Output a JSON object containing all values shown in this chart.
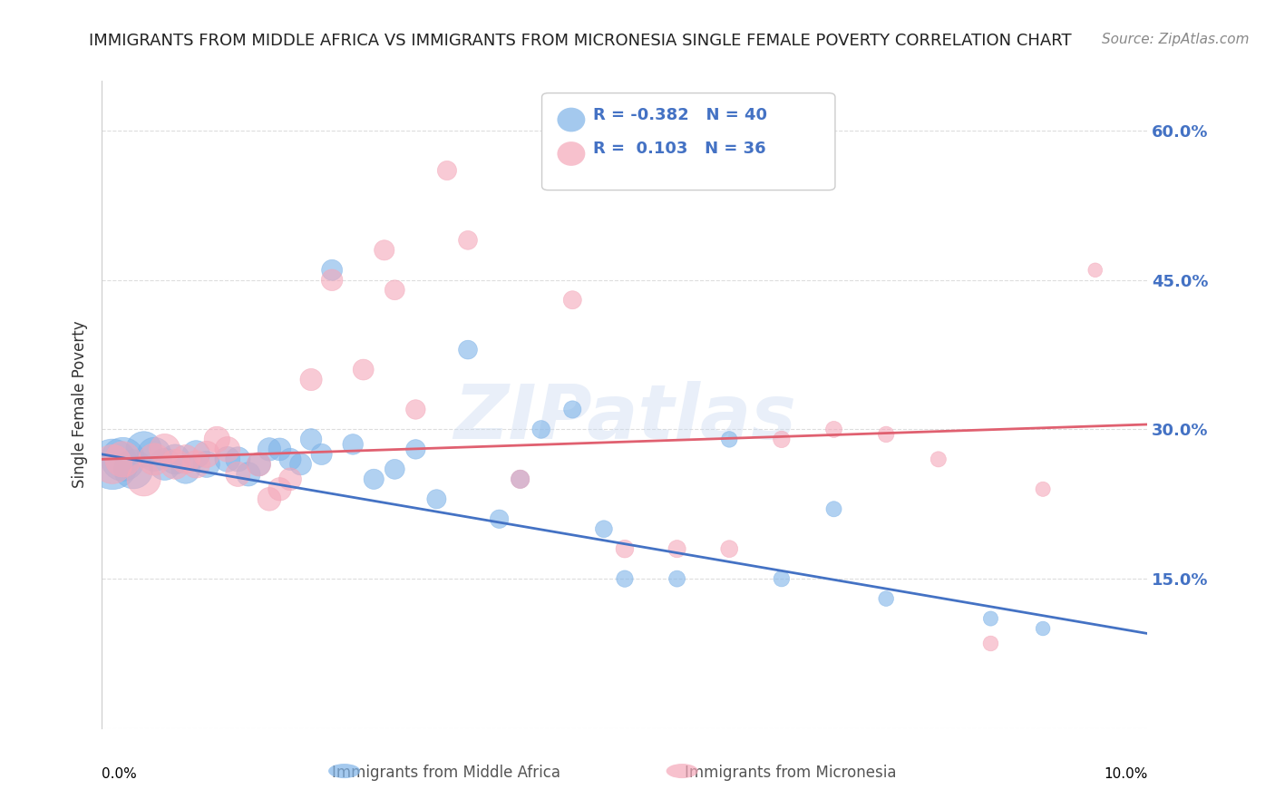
{
  "title": "IMMIGRANTS FROM MIDDLE AFRICA VS IMMIGRANTS FROM MICRONESIA SINGLE FEMALE POVERTY CORRELATION CHART",
  "source": "Source: ZipAtlas.com",
  "ylabel": "Single Female Poverty",
  "legend_blue_R": "-0.382",
  "legend_blue_N": "40",
  "legend_pink_R": "0.103",
  "legend_pink_N": "36",
  "yticks": [
    0.0,
    0.15,
    0.3,
    0.45,
    0.6
  ],
  "ytick_labels": [
    "",
    "15.0%",
    "30.0%",
    "45.0%",
    "60.0%"
  ],
  "xlim": [
    0.0,
    0.1
  ],
  "ylim": [
    0.0,
    0.65
  ],
  "blue_color": "#7EB3E8",
  "pink_color": "#F4A7B9",
  "blue_line_color": "#4472C4",
  "pink_line_color": "#E06070",
  "axis_color": "#4472C4",
  "grid_color": "#DDDDDD",
  "watermark": "ZIPatlas",
  "blue_scatter_x": [
    0.001,
    0.002,
    0.003,
    0.004,
    0.005,
    0.006,
    0.007,
    0.008,
    0.009,
    0.01,
    0.012,
    0.013,
    0.014,
    0.015,
    0.016,
    0.017,
    0.018,
    0.019,
    0.02,
    0.021,
    0.022,
    0.024,
    0.026,
    0.028,
    0.03,
    0.032,
    0.035,
    0.038,
    0.04,
    0.042,
    0.045,
    0.048,
    0.05,
    0.055,
    0.06,
    0.065,
    0.07,
    0.075,
    0.085,
    0.09
  ],
  "blue_scatter_y": [
    0.265,
    0.27,
    0.26,
    0.28,
    0.275,
    0.265,
    0.27,
    0.26,
    0.275,
    0.265,
    0.27,
    0.27,
    0.255,
    0.265,
    0.28,
    0.28,
    0.27,
    0.265,
    0.29,
    0.275,
    0.46,
    0.285,
    0.25,
    0.26,
    0.28,
    0.23,
    0.38,
    0.21,
    0.25,
    0.3,
    0.32,
    0.2,
    0.15,
    0.15,
    0.29,
    0.15,
    0.22,
    0.13,
    0.11,
    0.1
  ],
  "blue_scatter_size": [
    200,
    150,
    120,
    100,
    90,
    80,
    70,
    65,
    60,
    55,
    50,
    48,
    45,
    43,
    42,
    40,
    38,
    37,
    36,
    35,
    34,
    33,
    32,
    31,
    30,
    29,
    28,
    27,
    26,
    25,
    24,
    23,
    22,
    21,
    20,
    20,
    19,
    18,
    17,
    16
  ],
  "pink_scatter_x": [
    0.001,
    0.002,
    0.004,
    0.005,
    0.006,
    0.007,
    0.008,
    0.009,
    0.01,
    0.011,
    0.012,
    0.013,
    0.015,
    0.016,
    0.017,
    0.018,
    0.02,
    0.022,
    0.025,
    0.027,
    0.028,
    0.03,
    0.033,
    0.035,
    0.04,
    0.045,
    0.05,
    0.055,
    0.06,
    0.065,
    0.07,
    0.075,
    0.08,
    0.085,
    0.09,
    0.095
  ],
  "pink_scatter_y": [
    0.265,
    0.27,
    0.25,
    0.27,
    0.28,
    0.265,
    0.27,
    0.265,
    0.275,
    0.29,
    0.28,
    0.255,
    0.265,
    0.23,
    0.24,
    0.25,
    0.35,
    0.45,
    0.36,
    0.48,
    0.44,
    0.32,
    0.56,
    0.49,
    0.25,
    0.43,
    0.18,
    0.18,
    0.18,
    0.29,
    0.3,
    0.295,
    0.27,
    0.085,
    0.24,
    0.46
  ],
  "pink_scatter_size": [
    120,
    100,
    90,
    80,
    75,
    70,
    65,
    60,
    55,
    52,
    50,
    48,
    45,
    43,
    42,
    40,
    38,
    36,
    34,
    32,
    31,
    30,
    29,
    28,
    27,
    26,
    25,
    24,
    23,
    22,
    21,
    20,
    19,
    18,
    17,
    16
  ],
  "blue_trend_x": [
    0.0,
    0.1
  ],
  "blue_trend_y": [
    0.275,
    0.095
  ],
  "pink_trend_x": [
    0.0,
    0.1
  ],
  "pink_trend_y": [
    0.27,
    0.305
  ]
}
